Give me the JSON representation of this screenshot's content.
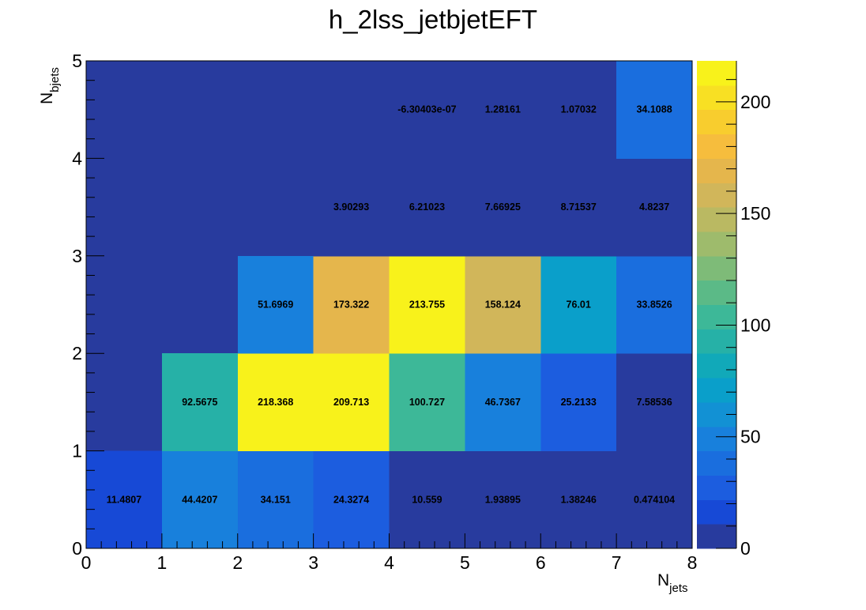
{
  "chart_data": {
    "type": "heatmap",
    "title": "h_2lss_jetbjetEFT",
    "xlabel": {
      "main": "N",
      "sub": "jets"
    },
    "ylabel": {
      "main": "N",
      "sub": "bjets"
    },
    "xlim": [
      0,
      8
    ],
    "ylim": [
      0,
      5
    ],
    "x_ticks": [
      "0",
      "1",
      "2",
      "3",
      "4",
      "5",
      "6",
      "7",
      "8"
    ],
    "y_ticks": [
      "0",
      "1",
      "2",
      "3",
      "4",
      "5"
    ],
    "z_range": [
      0,
      218.368
    ],
    "colorbar_ticks": [
      {
        "value": 0,
        "label": "0"
      },
      {
        "value": 50,
        "label": "50"
      },
      {
        "value": 100,
        "label": "100"
      },
      {
        "value": 150,
        "label": "150"
      },
      {
        "value": 200,
        "label": "200"
      }
    ],
    "cells": [
      {
        "x": 0,
        "y": 0,
        "value": 11.4807,
        "label": "11.4807"
      },
      {
        "x": 1,
        "y": 0,
        "value": 44.4207,
        "label": "44.4207"
      },
      {
        "x": 2,
        "y": 0,
        "value": 34.151,
        "label": "34.151"
      },
      {
        "x": 3,
        "y": 0,
        "value": 24.3274,
        "label": "24.3274"
      },
      {
        "x": 4,
        "y": 0,
        "value": 10.559,
        "label": "10.559"
      },
      {
        "x": 5,
        "y": 0,
        "value": 1.93895,
        "label": "1.93895"
      },
      {
        "x": 6,
        "y": 0,
        "value": 1.38246,
        "label": "1.38246"
      },
      {
        "x": 7,
        "y": 0,
        "value": 0.474104,
        "label": "0.474104"
      },
      {
        "x": 1,
        "y": 1,
        "value": 92.5675,
        "label": "92.5675"
      },
      {
        "x": 2,
        "y": 1,
        "value": 218.368,
        "label": "218.368"
      },
      {
        "x": 3,
        "y": 1,
        "value": 209.713,
        "label": "209.713"
      },
      {
        "x": 4,
        "y": 1,
        "value": 100.727,
        "label": "100.727"
      },
      {
        "x": 5,
        "y": 1,
        "value": 46.7367,
        "label": "46.7367"
      },
      {
        "x": 6,
        "y": 1,
        "value": 25.2133,
        "label": "25.2133"
      },
      {
        "x": 7,
        "y": 1,
        "value": 7.58536,
        "label": "7.58536"
      },
      {
        "x": 2,
        "y": 2,
        "value": 51.6969,
        "label": "51.6969"
      },
      {
        "x": 3,
        "y": 2,
        "value": 173.322,
        "label": "173.322"
      },
      {
        "x": 4,
        "y": 2,
        "value": 213.755,
        "label": "213.755"
      },
      {
        "x": 5,
        "y": 2,
        "value": 158.124,
        "label": "158.124"
      },
      {
        "x": 6,
        "y": 2,
        "value": 76.01,
        "label": "76.01"
      },
      {
        "x": 7,
        "y": 2,
        "value": 33.8526,
        "label": "33.8526"
      },
      {
        "x": 3,
        "y": 3,
        "value": 3.90293,
        "label": "3.90293"
      },
      {
        "x": 4,
        "y": 3,
        "value": 6.21023,
        "label": "6.21023"
      },
      {
        "x": 5,
        "y": 3,
        "value": 7.66925,
        "label": "7.66925"
      },
      {
        "x": 6,
        "y": 3,
        "value": 8.71537,
        "label": "8.71537"
      },
      {
        "x": 7,
        "y": 3,
        "value": 4.8237,
        "label": "4.8237"
      },
      {
        "x": 4,
        "y": 4,
        "value": -6.30403e-07,
        "label": "-6.30403e-07"
      },
      {
        "x": 5,
        "y": 4,
        "value": 1.28161,
        "label": "1.28161"
      },
      {
        "x": 6,
        "y": 4,
        "value": 1.07032,
        "label": "1.07032"
      },
      {
        "x": 7,
        "y": 4,
        "value": 34.1088,
        "label": "34.1088"
      }
    ],
    "palette": [
      "#283b9e",
      "#1749d6",
      "#1c5ddf",
      "#1a6ede",
      "#1880dc",
      "#1291d4",
      "#0a9fca",
      "#11a9b9",
      "#26b1a7",
      "#3db898",
      "#5bba87",
      "#7ebb78",
      "#9ebb6c",
      "#bab962",
      "#d1b65a",
      "#e5b64c",
      "#f6bd3d",
      "#f8cd2e",
      "#f8e023",
      "#f8f21b"
    ]
  }
}
